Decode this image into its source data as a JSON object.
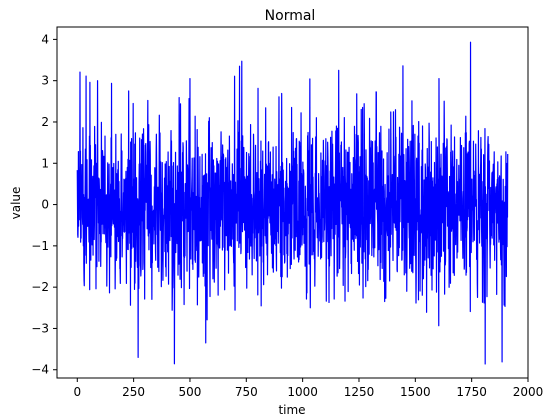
{
  "chart_data": {
    "type": "line",
    "title": "Normal",
    "xlabel": "time",
    "ylabel": "value",
    "xlim": [
      -90,
      2000
    ],
    "ylim": [
      -4.2,
      4.3
    ],
    "xticks": [
      0,
      250,
      500,
      750,
      1000,
      1250,
      1500,
      1750,
      2000
    ],
    "yticks": [
      -4,
      -3,
      -2,
      -1,
      0,
      1,
      2,
      3,
      4
    ],
    "grid": false,
    "legend": "none",
    "series": [
      {
        "color": "#0000ff",
        "n_points": 1911,
        "x_start": 0,
        "x_end": 1910,
        "distribution": "normal",
        "mean": 0.0,
        "std": 1.0,
        "max": 3.93,
        "min": -3.86,
        "notable_points": [
          {
            "x": 1745,
            "y": 3.93
          },
          {
            "x": 1810,
            "y": -3.86
          },
          {
            "x": 1885,
            "y": -3.81
          },
          {
            "x": 270,
            "y": -3.7
          },
          {
            "x": 730,
            "y": 3.47
          },
          {
            "x": 720,
            "y": 3.35
          },
          {
            "x": 570,
            "y": -3.35
          },
          {
            "x": 90,
            "y": 3.0
          },
          {
            "x": 1160,
            "y": 3.25
          },
          {
            "x": 500,
            "y": 3.05
          },
          {
            "x": 1605,
            "y": 3.05
          }
        ]
      }
    ]
  }
}
